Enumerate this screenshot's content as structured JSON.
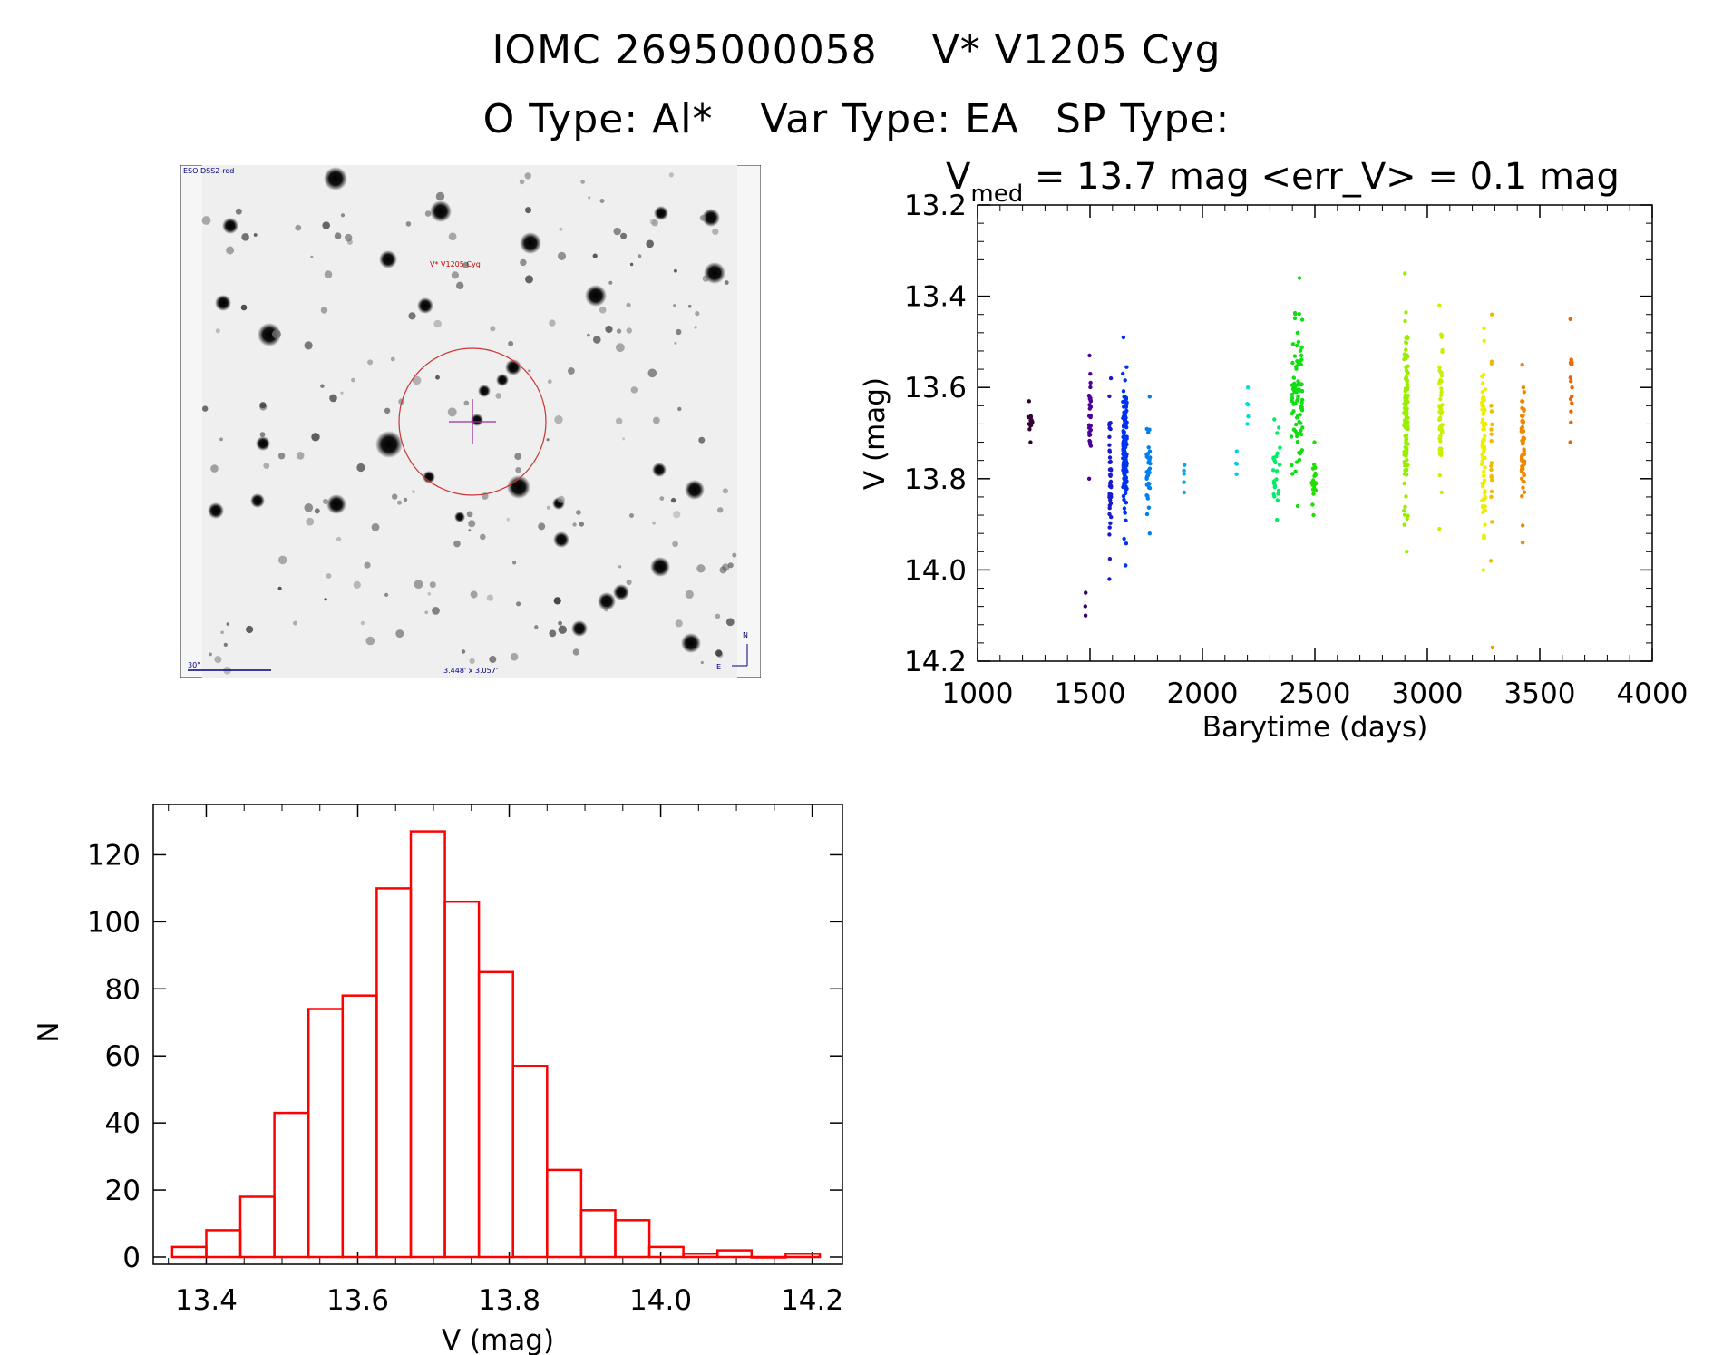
{
  "header": {
    "line1_id": "IOMC 2695000058",
    "line1_name": "V* V1205 Cyg",
    "line2_otype": "O Type: Al*",
    "line2_vartype": "Var Type: EA",
    "line2_sptype": "SP Type:"
  },
  "finder": {
    "survey_label": "ESO DSS2-red",
    "target_label": "V* V1205 Cyg",
    "scale_label": "30\"",
    "fov_label": "3.448' x 3.057'",
    "north": "N",
    "east": "E"
  },
  "colors": {
    "hist_bar": "#ff0000",
    "target_circle": "#cc3333",
    "crosshair": "#993399",
    "finder_text": "#000080"
  },
  "chart_data": [
    {
      "type": "scatter",
      "title_prefix": "V",
      "title_sub": "med",
      "title_rest": " = 13.7 mag <err_V> = 0.1 mag",
      "xlabel": "Barytime (days)",
      "ylabel": "V (mag)",
      "xlim": [
        1000,
        4000
      ],
      "ylim": [
        14.2,
        13.2
      ],
      "xticks": [
        "1000",
        "1500",
        "2000",
        "2500",
        "3000",
        "3500",
        "4000"
      ],
      "yticks": [
        "13.2",
        "13.4",
        "13.6",
        "13.8",
        "14.0",
        "14.2"
      ],
      "groups": [
        {
          "x": 1235,
          "width": 20,
          "ymin": 13.63,
          "ymax": 13.72,
          "n": 14,
          "color": "#330033"
        },
        {
          "x": 1480,
          "width": 2,
          "ymin": 14.05,
          "ymax": 14.1,
          "n": 3,
          "color": "#330066"
        },
        {
          "x": 1500,
          "width": 8,
          "ymin": 13.53,
          "ymax": 13.8,
          "n": 30,
          "color": "#4b0096"
        },
        {
          "x": 1590,
          "width": 8,
          "ymin": 13.58,
          "ymax": 14.02,
          "n": 45,
          "color": "#1a1acc"
        },
        {
          "x": 1655,
          "width": 18,
          "ymin": 13.49,
          "ymax": 13.99,
          "n": 130,
          "color": "#0033ee"
        },
        {
          "x": 1760,
          "width": 16,
          "ymin": 13.62,
          "ymax": 13.92,
          "n": 40,
          "color": "#0080ee"
        },
        {
          "x": 1920,
          "width": 6,
          "ymin": 13.77,
          "ymax": 13.83,
          "n": 5,
          "color": "#00aaee"
        },
        {
          "x": 2150,
          "width": 6,
          "ymin": 13.74,
          "ymax": 13.79,
          "n": 4,
          "color": "#00ccee"
        },
        {
          "x": 2200,
          "width": 8,
          "ymin": 13.6,
          "ymax": 13.68,
          "n": 5,
          "color": "#00dddd"
        },
        {
          "x": 2330,
          "width": 30,
          "ymin": 13.67,
          "ymax": 13.89,
          "n": 25,
          "color": "#00ee66"
        },
        {
          "x": 2420,
          "width": 50,
          "ymin": 13.36,
          "ymax": 13.86,
          "n": 90,
          "color": "#11dd11"
        },
        {
          "x": 2495,
          "width": 20,
          "ymin": 13.72,
          "ymax": 13.88,
          "n": 20,
          "color": "#22dd00"
        },
        {
          "x": 2905,
          "width": 18,
          "ymin": 13.35,
          "ymax": 13.96,
          "n": 110,
          "color": "#99ee00"
        },
        {
          "x": 3060,
          "width": 14,
          "ymin": 13.42,
          "ymax": 13.91,
          "n": 55,
          "color": "#ccee00"
        },
        {
          "x": 3250,
          "width": 16,
          "ymin": 13.47,
          "ymax": 14.0,
          "n": 75,
          "color": "#eeee00"
        },
        {
          "x": 3285,
          "width": 6,
          "ymin": 13.44,
          "ymax": 13.98,
          "n": 20,
          "color": "#eebb00"
        },
        {
          "x": 3290,
          "width": 2,
          "ymin": 14.16,
          "ymax": 14.18,
          "n": 1,
          "color": "#ee9900"
        },
        {
          "x": 3425,
          "width": 14,
          "ymin": 13.55,
          "ymax": 13.94,
          "n": 60,
          "color": "#ee8800"
        },
        {
          "x": 3640,
          "width": 8,
          "ymin": 13.45,
          "ymax": 13.72,
          "n": 15,
          "color": "#ee6600"
        }
      ]
    },
    {
      "type": "bar",
      "xlabel": "V (mag)",
      "ylabel": "N",
      "xlim": [
        13.33,
        14.24
      ],
      "ylim": [
        0,
        135
      ],
      "xticks": [
        "13.4",
        "13.6",
        "13.8",
        "14.0",
        "14.2"
      ],
      "yticks": [
        "0",
        "20",
        "40",
        "60",
        "80",
        "100",
        "120"
      ],
      "bin_width": 0.045,
      "bin_starts": [
        13.355,
        13.4,
        13.445,
        13.49,
        13.535,
        13.58,
        13.625,
        13.67,
        13.715,
        13.76,
        13.805,
        13.85,
        13.895,
        13.94,
        13.985,
        14.03,
        14.075,
        14.12,
        14.165
      ],
      "values": [
        3,
        8,
        18,
        43,
        74,
        78,
        110,
        127,
        106,
        85,
        57,
        26,
        14,
        11,
        3,
        1,
        2,
        0,
        1
      ]
    }
  ]
}
